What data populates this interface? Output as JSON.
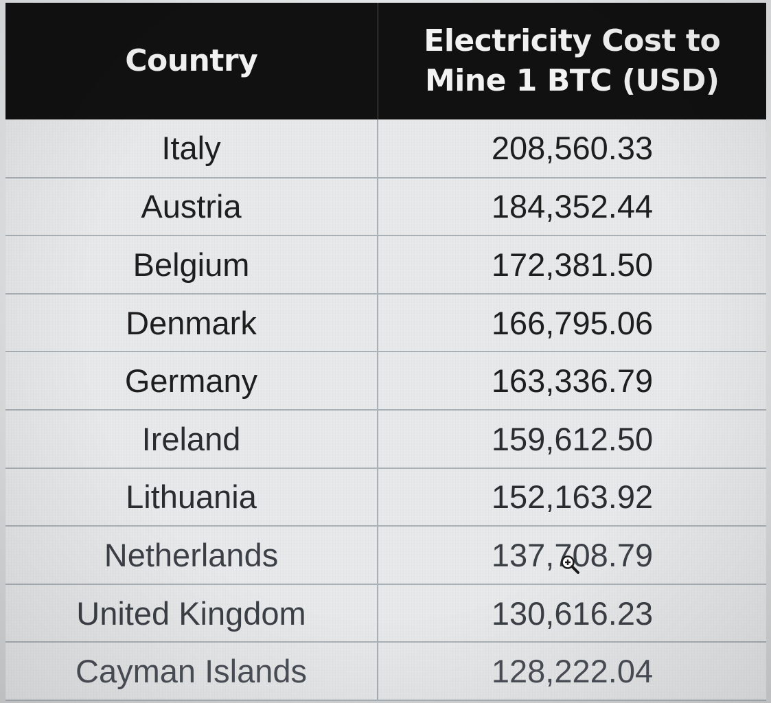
{
  "table": {
    "headers": {
      "country": "Country",
      "cost": "Electricity Cost to Mine 1 BTC (USD)"
    },
    "rows": [
      {
        "country": "Italy",
        "cost": "208,560.33"
      },
      {
        "country": "Austria",
        "cost": "184,352.44"
      },
      {
        "country": "Belgium",
        "cost": "172,381.50"
      },
      {
        "country": "Denmark",
        "cost": "166,795.06"
      },
      {
        "country": "Germany",
        "cost": "163,336.79"
      },
      {
        "country": "Ireland",
        "cost": "159,612.50"
      },
      {
        "country": "Lithuania",
        "cost": "152,163.92"
      },
      {
        "country": "Netherlands",
        "cost": "137,708.79"
      },
      {
        "country": "United Kingdom",
        "cost": "130,616.23"
      },
      {
        "country": "Cayman Islands",
        "cost": "128,222.04"
      }
    ]
  },
  "cursor": {
    "icon": "zoom-in-cursor-icon"
  },
  "colors": {
    "header_bg": "#111111",
    "header_text": "#f2f2f2",
    "cell_bg": "#e7e8e9",
    "grid_line": "#a9b0b6"
  }
}
